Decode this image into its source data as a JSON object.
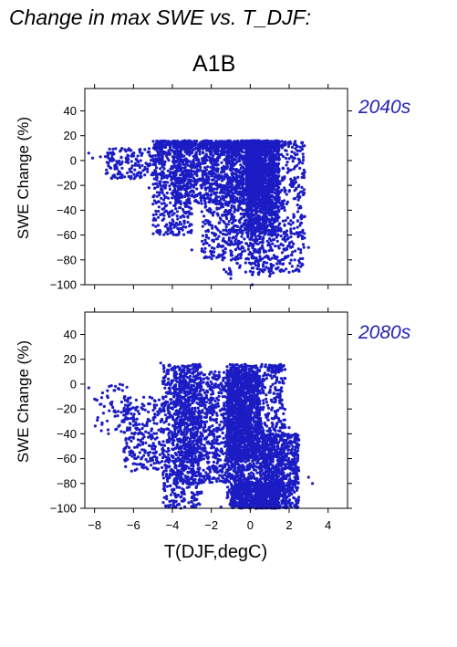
{
  "header": {
    "title": "Change in max SWE vs. T_DJF:",
    "scenario": "A1B"
  },
  "colors": {
    "points": "#1c1cc4",
    "period_text": "#2323b4"
  },
  "chart_data": [
    {
      "type": "scatter",
      "period_label": "2040s",
      "ylabel": "SWE Change (%)",
      "xlabel": "",
      "xlim": [
        -8.5,
        5
      ],
      "ylim": [
        -100,
        58
      ],
      "yticks": [
        -100,
        -80,
        -60,
        -40,
        -20,
        0,
        20,
        40
      ],
      "xticks": [
        -8,
        -6,
        -4,
        -2,
        0,
        2,
        4
      ],
      "show_xtick_labels": false,
      "clusters": [
        {
          "x": [
            -0.2,
            0.55
          ],
          "y": [
            -25,
            22
          ],
          "n": 1500
        },
        {
          "x": [
            -0.2,
            1.5
          ],
          "y": [
            -60,
            30
          ],
          "n": 1000
        },
        {
          "x": [
            -4.0,
            1.5
          ],
          "y": [
            -35,
            30
          ],
          "n": 1300
        },
        {
          "x": [
            -5.0,
            -3.0
          ],
          "y": [
            -60,
            30
          ],
          "n": 500
        },
        {
          "x": [
            -2.5,
            0.5
          ],
          "y": [
            -80,
            30
          ],
          "n": 700
        },
        {
          "x": [
            0.0,
            2.8
          ],
          "y": [
            -90,
            25
          ],
          "n": 600
        },
        {
          "x": [
            -7.5,
            -4.5
          ],
          "y": [
            -15,
            10
          ],
          "n": 180
        },
        {
          "x": [
            -1.5,
            1.2
          ],
          "y": [
            -92,
            8
          ],
          "n": 250
        }
      ],
      "points": [
        [
          -8.3,
          6
        ],
        [
          -8.1,
          2
        ],
        [
          -7.7,
          3
        ],
        [
          -7.2,
          1
        ],
        [
          -6.8,
          -2
        ],
        [
          -6.2,
          -7
        ],
        [
          -5.6,
          -13
        ],
        [
          -5.2,
          -22
        ],
        [
          -4.7,
          12
        ],
        [
          -4.3,
          14
        ],
        [
          0.5,
          14
        ],
        [
          1.2,
          13
        ],
        [
          2.3,
          -5
        ],
        [
          2.5,
          -20
        ],
        [
          2.6,
          -38
        ],
        [
          2.8,
          -45
        ],
        [
          3.0,
          -70
        ],
        [
          2.0,
          -90
        ],
        [
          1.0,
          -93
        ],
        [
          -1.0,
          -95
        ],
        [
          0.1,
          -100
        ],
        [
          -2.0,
          -75
        ],
        [
          -3.0,
          -72
        ],
        [
          -5.0,
          -35
        ],
        [
          -4.1,
          -55
        ]
      ]
    },
    {
      "type": "scatter",
      "period_label": "2080s",
      "ylabel": "SWE Change (%)",
      "xlabel": "T(DJF,degC)",
      "xlim": [
        -8.5,
        5
      ],
      "ylim": [
        -100,
        58
      ],
      "yticks": [
        -100,
        -80,
        -60,
        -40,
        -20,
        0,
        20,
        40
      ],
      "xticks": [
        -8,
        -6,
        -4,
        -2,
        0,
        2,
        4
      ],
      "xtick_labels": [
        "−8",
        "−6",
        "−4",
        "−2",
        "0",
        "2",
        "4"
      ],
      "show_xtick_labels": true,
      "clusters": [
        {
          "x": [
            -1.2,
            0.5
          ],
          "y": [
            -60,
            10
          ],
          "n": 900
        },
        {
          "x": [
            -1.2,
            1.8
          ],
          "y": [
            -100,
            22
          ],
          "n": 1200
        },
        {
          "x": [
            -4.0,
            0.0
          ],
          "y": [
            -80,
            10
          ],
          "n": 1200
        },
        {
          "x": [
            -4.5,
            -2.5
          ],
          "y": [
            -100,
            20
          ],
          "n": 700
        },
        {
          "x": [
            -6.5,
            -4.5
          ],
          "y": [
            -70,
            -10
          ],
          "n": 250
        },
        {
          "x": [
            0.5,
            2.5
          ],
          "y": [
            -100,
            -40
          ],
          "n": 700
        },
        {
          "x": [
            -1.0,
            1.5
          ],
          "y": [
            -100,
            -80
          ],
          "n": 600
        },
        {
          "x": [
            -8.0,
            -6.0
          ],
          "y": [
            -40,
            0
          ],
          "n": 70
        }
      ],
      "points": [
        [
          -8.3,
          -3
        ],
        [
          -8.0,
          -12
        ],
        [
          -7.5,
          -18
        ],
        [
          -7.0,
          -22
        ],
        [
          -6.5,
          -25
        ],
        [
          -6.0,
          -30
        ],
        [
          -4.6,
          17
        ],
        [
          -3.7,
          14
        ],
        [
          -1.8,
          10
        ],
        [
          1.0,
          14
        ],
        [
          1.5,
          13
        ],
        [
          2.0,
          -35
        ],
        [
          2.5,
          -45
        ],
        [
          3.0,
          -75
        ],
        [
          3.2,
          -80
        ],
        [
          -3.0,
          -95
        ],
        [
          -1.5,
          -99
        ],
        [
          0.0,
          -100
        ],
        [
          1.2,
          -100
        ],
        [
          -4.4,
          -80
        ],
        [
          -5.5,
          -65
        ]
      ]
    }
  ]
}
